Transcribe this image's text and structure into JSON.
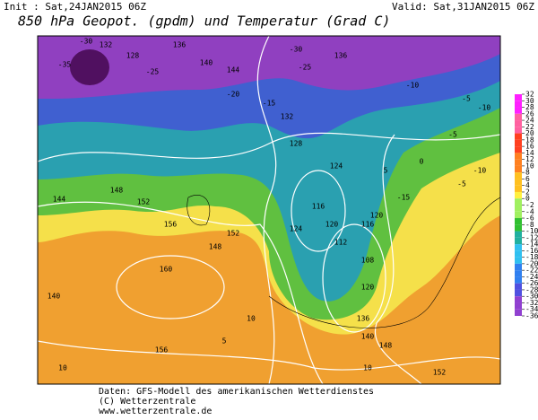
{
  "header": {
    "init": "Init : Sat,24JAN2015 06Z",
    "valid": "Valid: Sat,31JAN2015 06Z",
    "title": "850 hPa Geopot. (gpdm) und Temperatur (Grad C)"
  },
  "footer": {
    "line1": "Daten: GFS-Modell des amerikanischen Wetterdienstes",
    "line2": "(C) Wetterzentrale",
    "line3": "www.wetterzentrale.de"
  },
  "legend": {
    "ticks": [
      32,
      30,
      28,
      26,
      24,
      22,
      20,
      18,
      16,
      14,
      12,
      10,
      8,
      6,
      4,
      2,
      0,
      -2,
      -4,
      -6,
      -8,
      -10,
      -12,
      -14,
      -16,
      -18,
      -20,
      -22,
      -24,
      -26,
      -28,
      -30,
      -32,
      -34,
      -36
    ]
  },
  "map": {
    "contour_labels": [
      "-30",
      "132",
      "128",
      "-35",
      "136",
      "140",
      "144",
      "-25",
      "-20",
      "-30",
      "-25",
      "136",
      "-15",
      "-10",
      "-5",
      "132",
      "128",
      "124",
      "120",
      "116",
      "112",
      "108",
      "144",
      "148",
      "152",
      "156",
      "160",
      "156",
      "152",
      "148",
      "140",
      "10",
      "5",
      "0",
      "-5",
      "-10",
      "124",
      "120",
      "116",
      "120",
      "136",
      "140",
      "148",
      "10",
      "10",
      "5",
      "-5",
      "-10",
      "-15",
      "152"
    ]
  }
}
